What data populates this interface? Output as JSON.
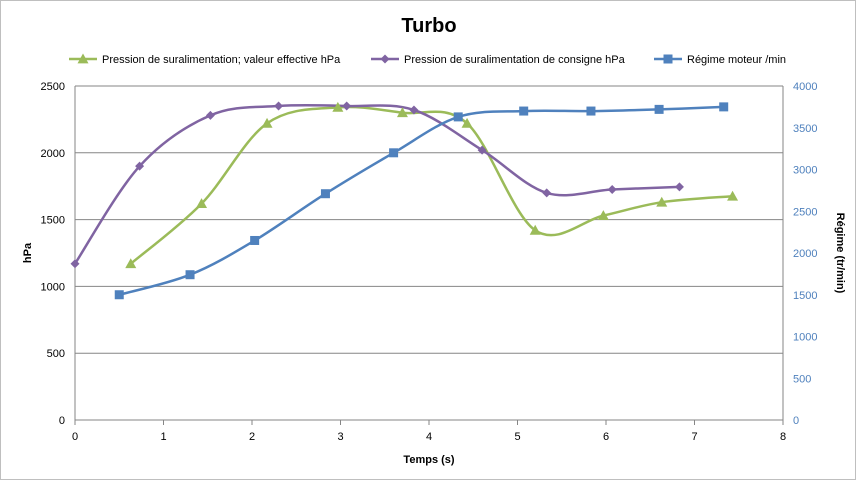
{
  "chart_data": {
    "type": "line",
    "title": "Turbo",
    "xlabel": "Temps (s)",
    "ylabel": "hPa",
    "y2label": "Régime (tr/min)",
    "xlim": [
      0,
      8
    ],
    "ylim": [
      0,
      2500
    ],
    "y2lim": [
      0,
      4000
    ],
    "xticks": [
      "0",
      "1",
      "2",
      "3",
      "4",
      "5",
      "6",
      "7",
      "8"
    ],
    "yticks": [
      "0",
      "500",
      "1000",
      "1500",
      "2000",
      "2500"
    ],
    "y2ticks": [
      "0",
      "500",
      "1000",
      "1500",
      "2000",
      "2500",
      "3000",
      "3500",
      "4000"
    ],
    "grid": "horizontal",
    "legend_position": "top",
    "series": [
      {
        "name": "Pression de suralimentation; valeur effective hPa",
        "axis": "left",
        "marker": "triangle",
        "color": "#9bbb59",
        "x": [
          0.63,
          1.43,
          2.17,
          2.97,
          3.7,
          4.43,
          5.2,
          5.97,
          6.63,
          7.43
        ],
        "y": [
          1170,
          1620,
          2220,
          2340,
          2300,
          2220,
          1420,
          1530,
          1630,
          1675
        ]
      },
      {
        "name": "Pression de suralimentation de consigne hPa",
        "axis": "left",
        "marker": "diamond",
        "color": "#8064a2",
        "x": [
          0,
          0.73,
          1.53,
          2.3,
          3.07,
          3.83,
          4.6,
          5.33,
          6.07,
          6.83
        ],
        "y": [
          1170,
          1900,
          2280,
          2350,
          2350,
          2320,
          2020,
          1700,
          1725,
          1745
        ]
      },
      {
        "name": "Régime moteur /min",
        "axis": "right",
        "marker": "square",
        "color": "#4f81bd",
        "x": [
          0.5,
          1.3,
          2.03,
          2.83,
          3.6,
          4.33,
          5.07,
          5.83,
          6.6,
          7.33
        ],
        "y": [
          1500,
          1740,
          2150,
          2710,
          3200,
          3630,
          3700,
          3700,
          3720,
          3750
        ]
      }
    ]
  }
}
